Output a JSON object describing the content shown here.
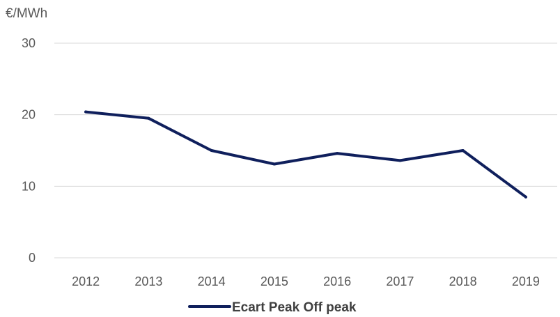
{
  "chart_data": {
    "type": "line",
    "ylabel": "€/MWh",
    "xlabel": "",
    "categories": [
      "2012",
      "2013",
      "2014",
      "2015",
      "2016",
      "2017",
      "2018",
      "2019"
    ],
    "series": [
      {
        "name": "Ecart Peak Off peak",
        "values": [
          20.4,
          19.5,
          15.0,
          13.1,
          14.6,
          13.6,
          15.0,
          8.5
        ],
        "color": "#0f1f5c"
      }
    ],
    "ylim": [
      0,
      30
    ],
    "y_ticks": [
      "0",
      "10",
      "20",
      "30"
    ],
    "grid": true,
    "legend_position": "bottom"
  }
}
